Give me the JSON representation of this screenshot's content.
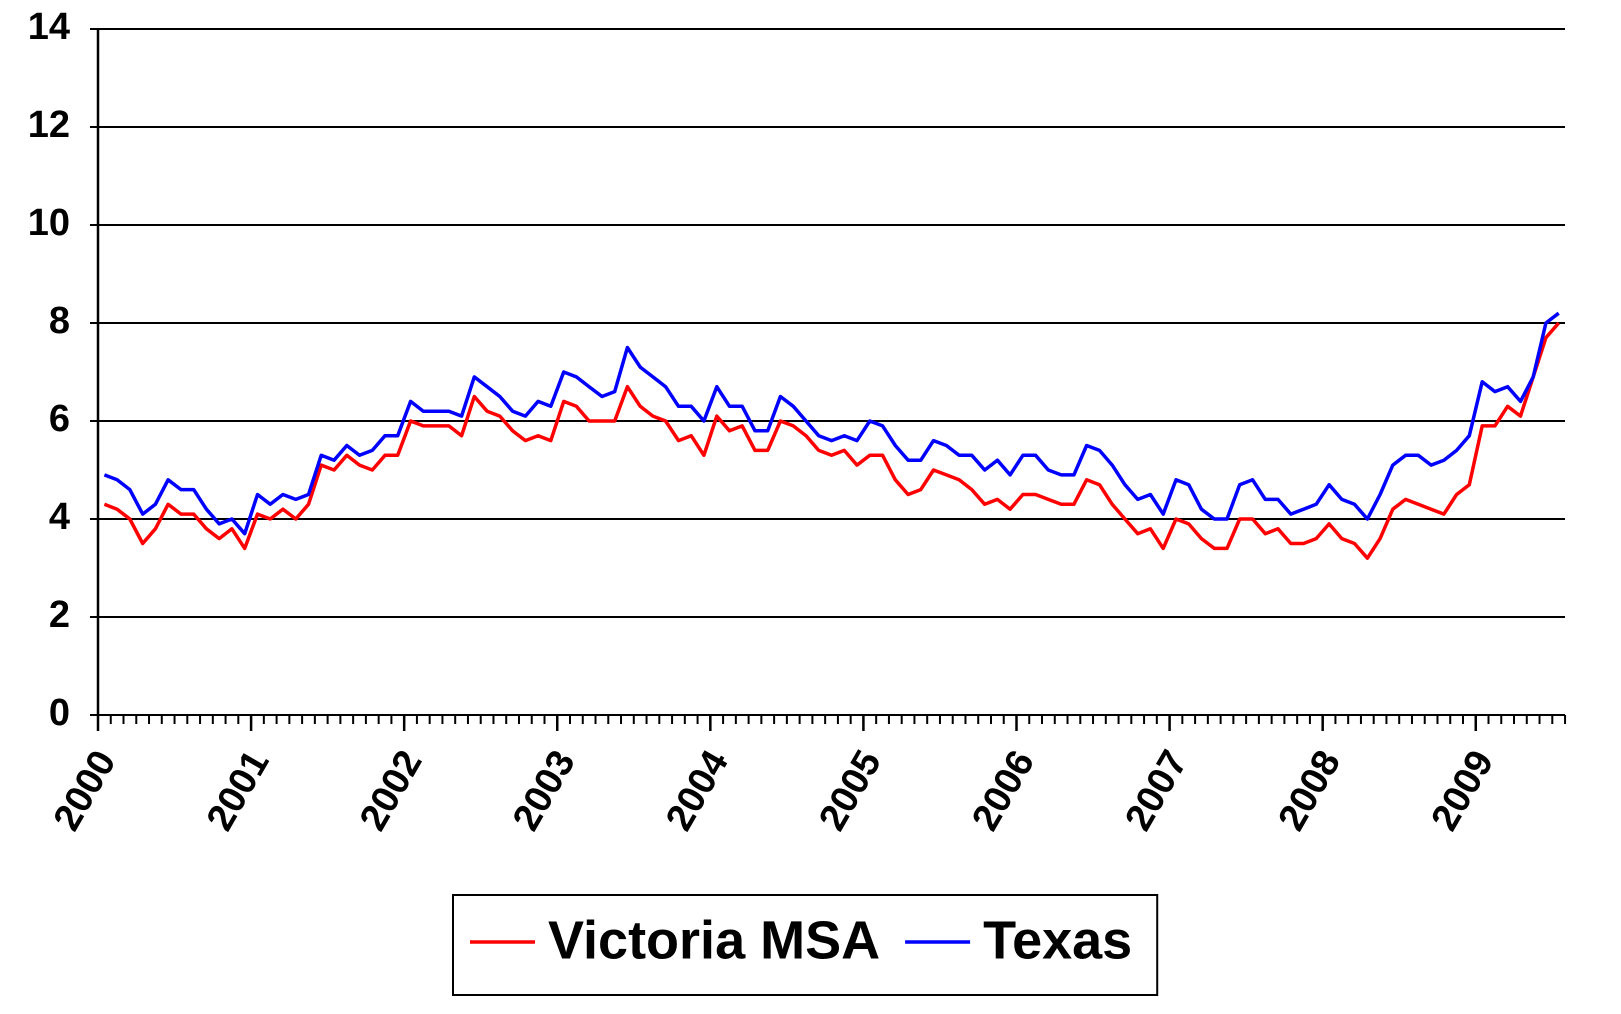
{
  "chart_data": {
    "type": "line",
    "x": [
      2000.042,
      2000.125,
      2000.208,
      2000.292,
      2000.375,
      2000.458,
      2000.542,
      2000.625,
      2000.708,
      2000.792,
      2000.875,
      2000.958,
      2001.042,
      2001.125,
      2001.208,
      2001.292,
      2001.375,
      2001.458,
      2001.542,
      2001.625,
      2001.708,
      2001.792,
      2001.875,
      2001.958,
      2002.042,
      2002.125,
      2002.208,
      2002.292,
      2002.375,
      2002.458,
      2002.542,
      2002.625,
      2002.708,
      2002.792,
      2002.875,
      2002.958,
      2003.042,
      2003.125,
      2003.208,
      2003.292,
      2003.375,
      2003.458,
      2003.542,
      2003.625,
      2003.708,
      2003.792,
      2003.875,
      2003.958,
      2004.042,
      2004.125,
      2004.208,
      2004.292,
      2004.375,
      2004.458,
      2004.542,
      2004.625,
      2004.708,
      2004.792,
      2004.875,
      2004.958,
      2005.042,
      2005.125,
      2005.208,
      2005.292,
      2005.375,
      2005.458,
      2005.542,
      2005.625,
      2005.708,
      2005.792,
      2005.875,
      2005.958,
      2006.042,
      2006.125,
      2006.208,
      2006.292,
      2006.375,
      2006.458,
      2006.542,
      2006.625,
      2006.708,
      2006.792,
      2006.875,
      2006.958,
      2007.042,
      2007.125,
      2007.208,
      2007.292,
      2007.375,
      2007.458,
      2007.542,
      2007.625,
      2007.708,
      2007.792,
      2007.875,
      2007.958,
      2008.042,
      2008.125,
      2008.208,
      2008.292,
      2008.375,
      2008.458,
      2008.542,
      2008.625,
      2008.708,
      2008.792,
      2008.875,
      2008.958,
      2009.042,
      2009.125,
      2009.208,
      2009.292,
      2009.375,
      2009.458,
      2009.542
    ],
    "series": [
      {
        "name": "Victoria MSA",
        "color": "#ff0000",
        "values": [
          4.3,
          4.2,
          4.0,
          3.5,
          3.8,
          4.3,
          4.1,
          4.1,
          3.8,
          3.6,
          3.8,
          3.4,
          4.1,
          4.0,
          4.2,
          4.0,
          4.3,
          5.1,
          5.0,
          5.3,
          5.1,
          5.0,
          5.3,
          5.3,
          6.0,
          5.9,
          5.9,
          5.9,
          5.7,
          6.5,
          6.2,
          6.1,
          5.8,
          5.6,
          5.7,
          5.6,
          6.4,
          6.3,
          6.0,
          6.0,
          6.0,
          6.7,
          6.3,
          6.1,
          6.0,
          5.6,
          5.7,
          5.3,
          6.1,
          5.8,
          5.9,
          5.4,
          5.4,
          6.0,
          5.9,
          5.7,
          5.4,
          5.3,
          5.4,
          5.1,
          5.3,
          5.3,
          4.8,
          4.5,
          4.6,
          5.0,
          4.9,
          4.8,
          4.6,
          4.3,
          4.4,
          4.2,
          4.5,
          4.5,
          4.4,
          4.3,
          4.3,
          4.8,
          4.7,
          4.3,
          4.0,
          3.7,
          3.8,
          3.4,
          4.0,
          3.9,
          3.6,
          3.4,
          3.4,
          4.0,
          4.0,
          3.7,
          3.8,
          3.5,
          3.5,
          3.6,
          3.9,
          3.6,
          3.5,
          3.2,
          3.6,
          4.2,
          4.4,
          4.3,
          4.2,
          4.1,
          4.5,
          4.7,
          5.9,
          5.9,
          6.3,
          6.1,
          6.9,
          7.7,
          8.0
        ]
      },
      {
        "name": "Texas",
        "color": "#0000ff",
        "values": [
          4.9,
          4.8,
          4.6,
          4.1,
          4.3,
          4.8,
          4.6,
          4.6,
          4.2,
          3.9,
          4.0,
          3.7,
          4.5,
          4.3,
          4.5,
          4.4,
          4.5,
          5.3,
          5.2,
          5.5,
          5.3,
          5.4,
          5.7,
          5.7,
          6.4,
          6.2,
          6.2,
          6.2,
          6.1,
          6.9,
          6.7,
          6.5,
          6.2,
          6.1,
          6.4,
          6.3,
          7.0,
          6.9,
          6.7,
          6.5,
          6.6,
          7.5,
          7.1,
          6.9,
          6.7,
          6.3,
          6.3,
          6.0,
          6.7,
          6.3,
          6.3,
          5.8,
          5.8,
          6.5,
          6.3,
          6.0,
          5.7,
          5.6,
          5.7,
          5.6,
          6.0,
          5.9,
          5.5,
          5.2,
          5.2,
          5.6,
          5.5,
          5.3,
          5.3,
          5.0,
          5.2,
          4.9,
          5.3,
          5.3,
          5.0,
          4.9,
          4.9,
          5.5,
          5.4,
          5.1,
          4.7,
          4.4,
          4.5,
          4.1,
          4.8,
          4.7,
          4.2,
          4.0,
          4.0,
          4.7,
          4.8,
          4.4,
          4.4,
          4.1,
          4.2,
          4.3,
          4.7,
          4.4,
          4.3,
          4.0,
          4.5,
          5.1,
          5.3,
          5.3,
          5.1,
          5.2,
          5.4,
          5.7,
          6.8,
          6.6,
          6.7,
          6.4,
          6.9,
          8.0,
          8.2
        ]
      }
    ],
    "xlim": [
      2000,
      2009.583
    ],
    "xticks": [
      2000,
      2001,
      2002,
      2003,
      2004,
      2005,
      2006,
      2007,
      2008,
      2009
    ],
    "ylim": [
      0,
      14
    ],
    "yticks": [
      0,
      2,
      4,
      6,
      8,
      10,
      12,
      14
    ],
    "grid": true,
    "legend": "bottom"
  }
}
